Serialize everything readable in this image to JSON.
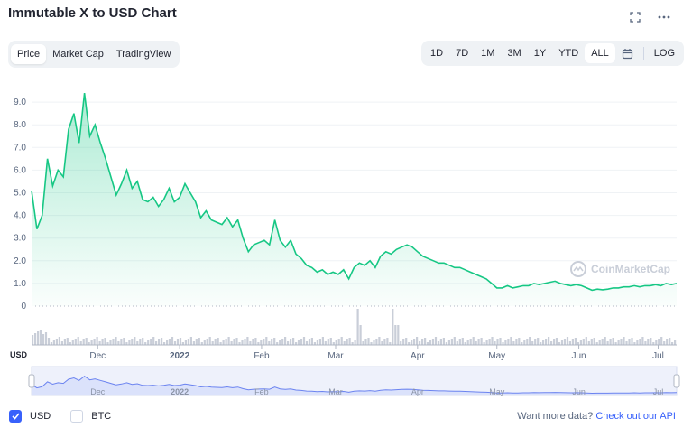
{
  "header": {
    "title": "Immutable X to USD Chart"
  },
  "view_tabs": [
    "Price",
    "Market Cap",
    "TradingView"
  ],
  "active_view": "Price",
  "range_tabs": [
    "1D",
    "7D",
    "1M",
    "3M",
    "1Y",
    "YTD",
    "ALL"
  ],
  "active_range": "ALL",
  "log_label": "LOG",
  "watermark": "CoinMarketCap",
  "currency_axis_label": "USD",
  "checkboxes": [
    {
      "label": "USD",
      "checked": true
    },
    {
      "label": "BTC",
      "checked": false
    }
  ],
  "footer": {
    "text": "Want more data?",
    "link": "Check out our API"
  },
  "colors": {
    "line": "#16c784",
    "accent": "#3861fb",
    "navigator": "#6b83f0"
  },
  "chart_data": {
    "type": "area",
    "ylabel": "USD",
    "ylim": [
      0,
      10
    ],
    "y_ticks": [
      "0",
      "1.0",
      "2.0",
      "3.0",
      "4.0",
      "5.0",
      "6.0",
      "7.0",
      "8.0",
      "9.0"
    ],
    "x_ticks": [
      "Dec",
      "2022",
      "Feb",
      "Mar",
      "Apr",
      "May",
      "Jun",
      "Jul"
    ],
    "x_tick_days": [
      25,
      56,
      87,
      115,
      146,
      176,
      207,
      237
    ],
    "x_range": [
      0,
      244
    ],
    "series": [
      {
        "x": [
          0,
          2,
          4,
          6,
          8,
          10,
          12,
          14,
          16,
          18,
          20,
          22,
          24,
          26,
          28,
          30,
          32,
          34,
          36,
          38,
          40,
          42,
          44,
          46,
          48,
          50,
          52,
          54,
          56,
          58,
          60,
          62,
          64,
          66,
          68,
          70,
          72,
          74,
          76,
          78,
          80,
          82,
          84,
          86,
          88,
          90,
          92,
          94,
          96,
          98,
          100,
          102,
          104,
          106,
          108,
          110,
          112,
          114,
          116,
          118,
          120,
          122,
          124,
          126,
          128,
          130,
          132,
          134,
          136,
          138,
          140,
          142,
          144,
          146,
          148,
          150,
          152,
          154,
          156,
          158,
          160,
          162,
          164,
          166,
          168,
          170,
          172,
          174,
          176,
          178,
          180,
          182,
          184,
          186,
          188,
          190,
          192,
          194,
          196,
          198,
          200,
          202,
          204,
          206,
          208,
          210,
          212,
          214,
          216,
          218,
          220,
          222,
          224,
          226,
          228,
          230,
          232,
          234,
          236,
          238,
          240,
          242,
          244
        ],
        "values": [
          5.1,
          3.4,
          4.0,
          6.5,
          5.3,
          6.0,
          5.7,
          7.8,
          8.5,
          7.2,
          9.4,
          7.5,
          8.0,
          7.2,
          6.5,
          5.7,
          4.9,
          5.4,
          6.0,
          5.2,
          5.5,
          4.7,
          4.6,
          4.8,
          4.4,
          4.7,
          5.2,
          4.6,
          4.8,
          5.4,
          5.0,
          4.6,
          3.9,
          4.2,
          3.8,
          3.7,
          3.6,
          3.9,
          3.5,
          3.8,
          3.0,
          2.4,
          2.7,
          2.8,
          2.9,
          2.7,
          3.8,
          2.9,
          2.6,
          2.9,
          2.3,
          2.1,
          1.8,
          1.7,
          1.5,
          1.6,
          1.4,
          1.5,
          1.4,
          1.6,
          1.2,
          1.7,
          1.9,
          1.8,
          2.0,
          1.7,
          2.2,
          2.4,
          2.3,
          2.5,
          2.6,
          2.7,
          2.6,
          2.4,
          2.2,
          2.1,
          2.0,
          1.9,
          1.9,
          1.8,
          1.7,
          1.7,
          1.6,
          1.5,
          1.4,
          1.3,
          1.2,
          1.0,
          0.8,
          0.8,
          0.9,
          0.8,
          0.85,
          0.9,
          0.9,
          1.0,
          0.95,
          1.0,
          1.05,
          1.1,
          1.0,
          0.95,
          0.9,
          0.95,
          0.9,
          0.8,
          0.7,
          0.75,
          0.72,
          0.75,
          0.8,
          0.8,
          0.85,
          0.85,
          0.9,
          0.85,
          0.9,
          0.9,
          0.95,
          0.9,
          1.0,
          0.95,
          1.0
        ]
      }
    ]
  }
}
